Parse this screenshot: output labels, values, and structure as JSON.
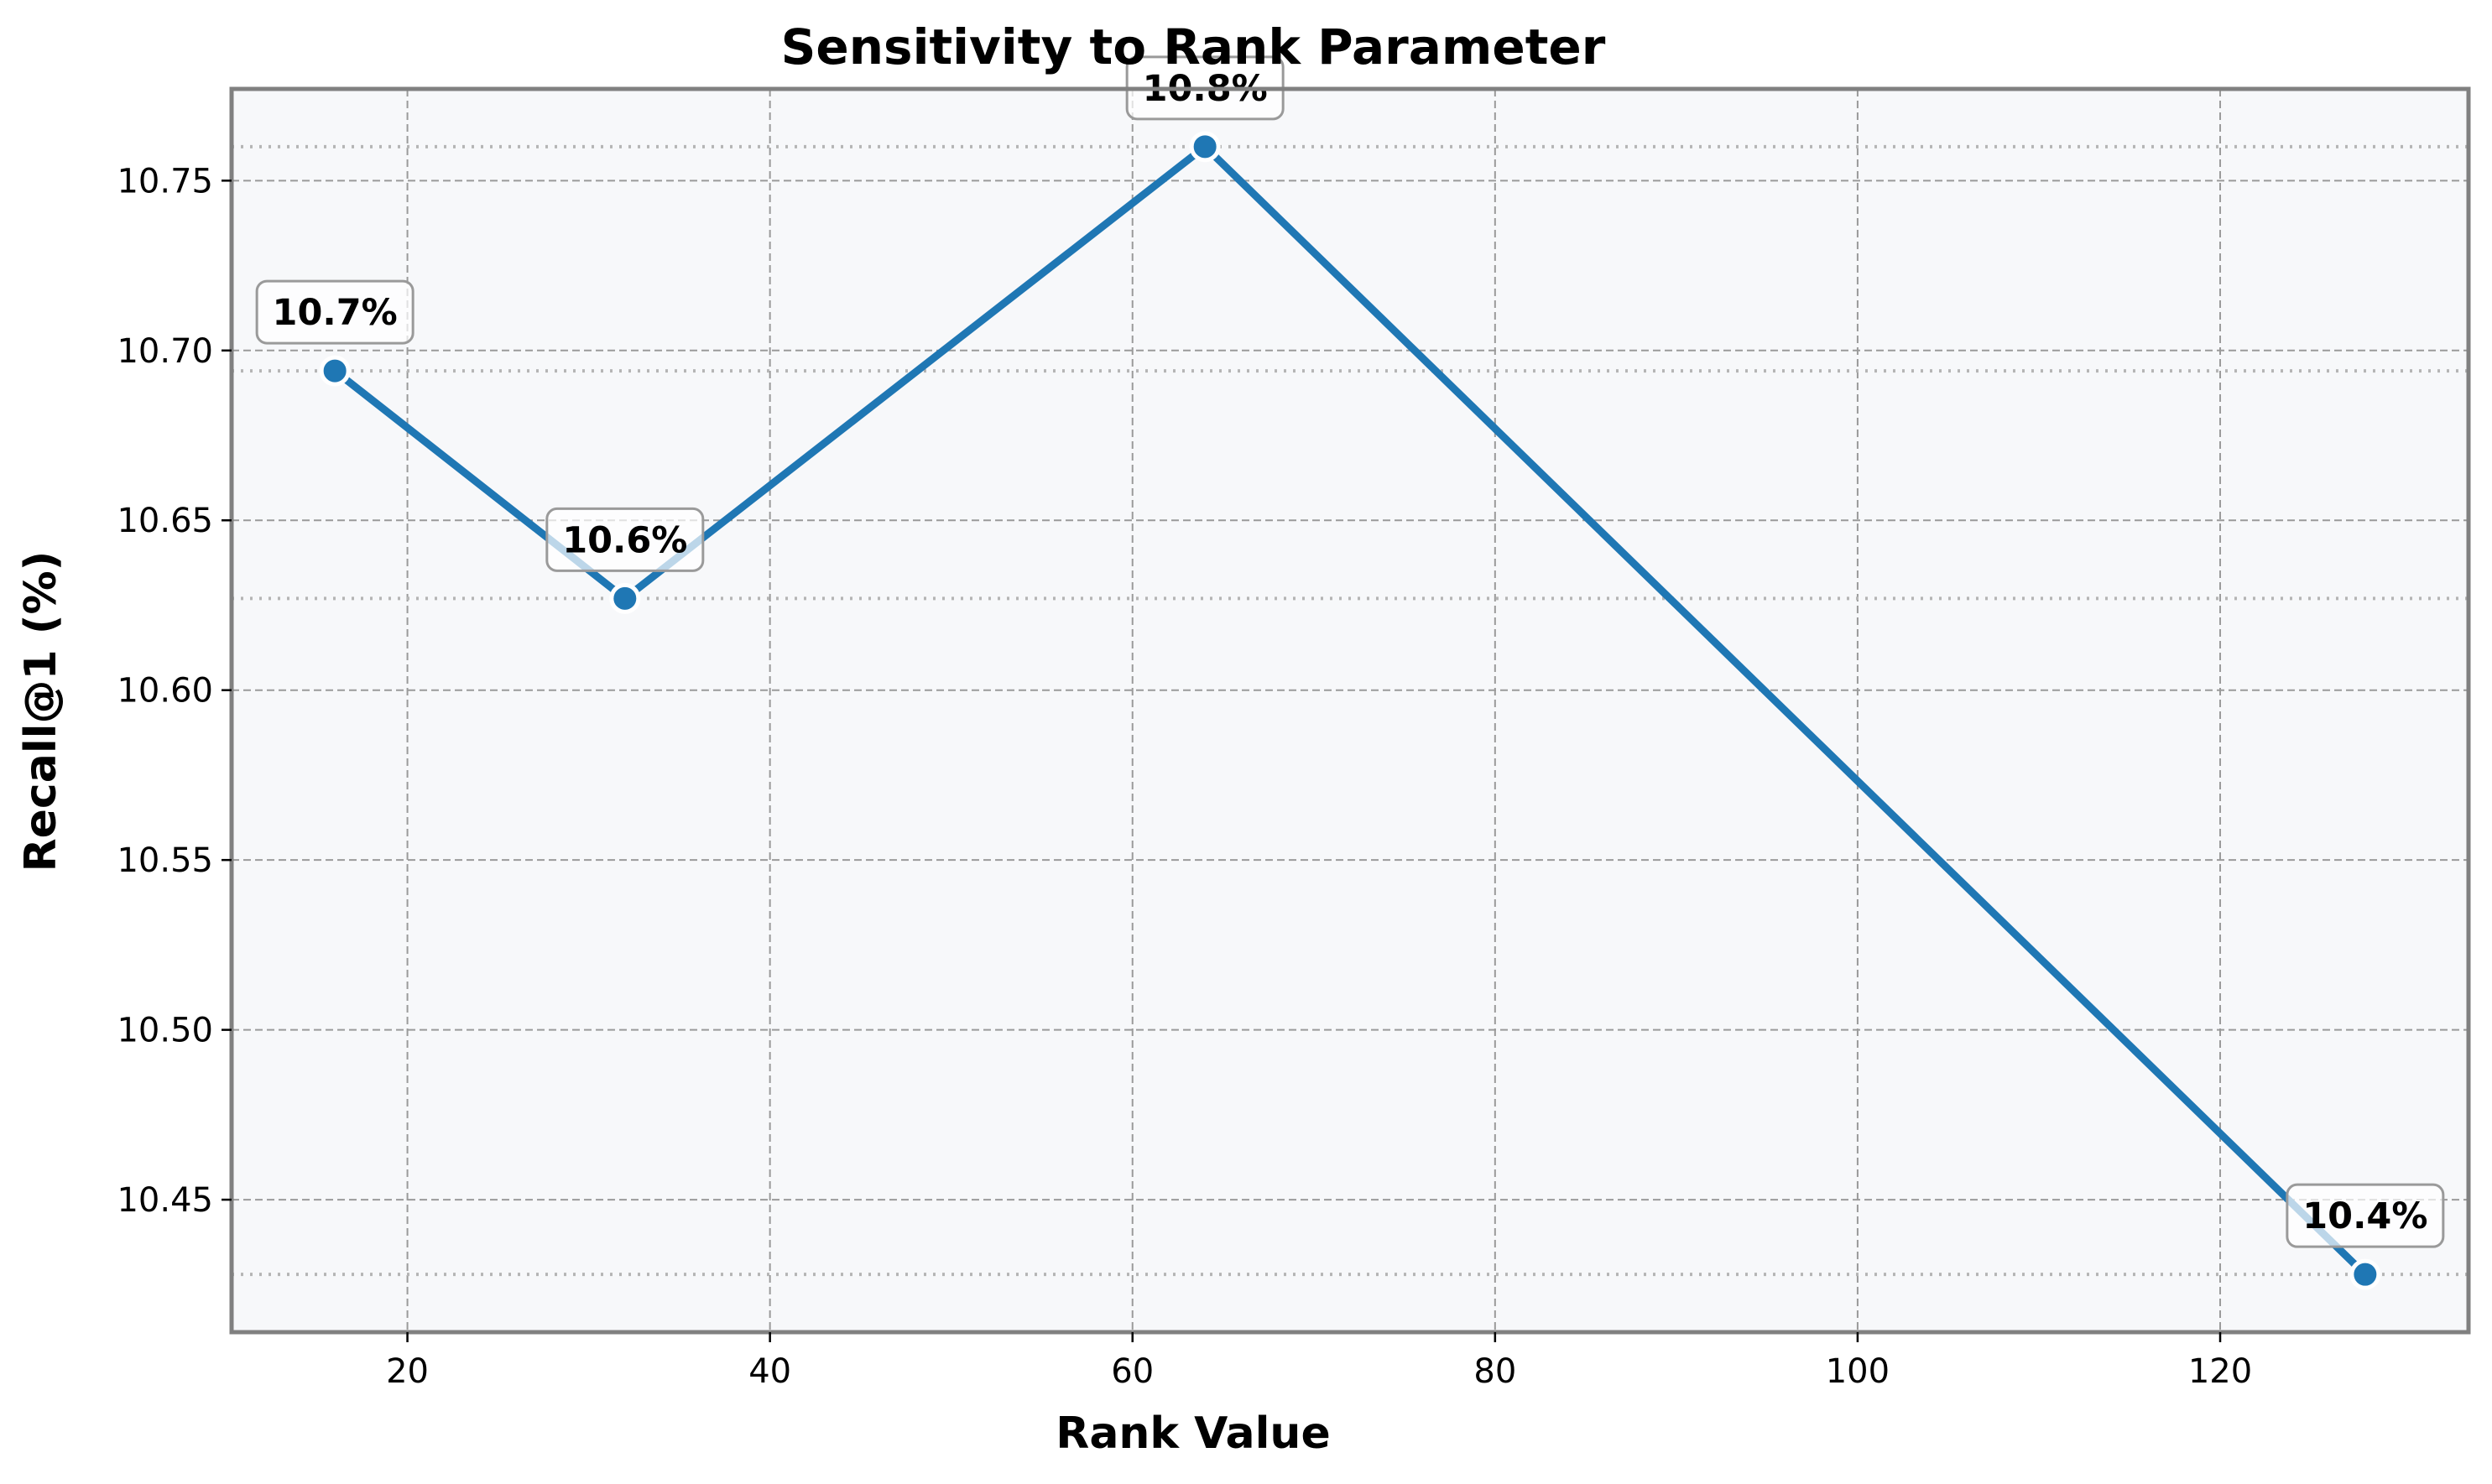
{
  "colors": {
    "line": "#1f77b4",
    "plot_background": "#f7f8fa",
    "frame": "#808080",
    "grid": "#9a9a9a",
    "reference": "#b5b5b5",
    "annotation_border": "#9a9a9a",
    "annotation_fill": "#ffffff"
  },
  "chart_data": {
    "type": "line",
    "title": "Sensitivity to Rank Parameter",
    "xlabel": "Rank Value",
    "ylabel": "Recall@1 (%)",
    "x": [
      16,
      32,
      64,
      128
    ],
    "series": [
      {
        "name": "Recall@1",
        "values": [
          10.694,
          10.627,
          10.76,
          10.428
        ]
      }
    ],
    "data_labels": [
      "10.7%",
      "10.6%",
      "10.8%",
      "10.4%"
    ],
    "xlim": [
      10.3,
      133.7
    ],
    "ylim": [
      10.411,
      10.777
    ],
    "xticks": [
      20,
      40,
      60,
      80,
      100,
      120
    ],
    "xtick_labels": [
      "20",
      "40",
      "60",
      "80",
      "100",
      "120"
    ],
    "yticks": [
      10.45,
      10.5,
      10.55,
      10.6,
      10.65,
      10.7,
      10.75
    ],
    "ytick_labels": [
      "10.45",
      "10.50",
      "10.55",
      "10.60",
      "10.65",
      "10.70",
      "10.75"
    ],
    "grid": true,
    "reference_lines": "dotted horizontal line at each point value"
  }
}
